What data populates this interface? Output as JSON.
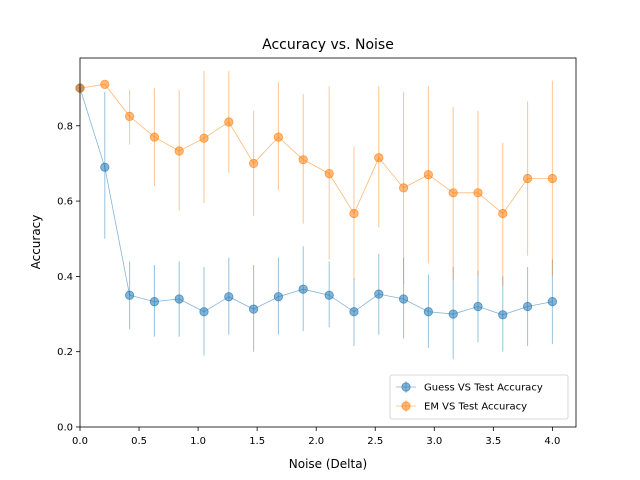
{
  "chart_data": {
    "type": "line",
    "title": "Accuracy vs. Noise",
    "xlabel": "Noise (Delta)",
    "ylabel": "Accuracy",
    "xlim": [
      0,
      4.2
    ],
    "ylim": [
      0,
      0.98
    ],
    "x_ticks": [
      0.0,
      0.5,
      1.0,
      1.5,
      2.0,
      2.5,
      3.0,
      3.5,
      4.0
    ],
    "x_tick_labels": [
      "0.0",
      "0.5",
      "1.0",
      "1.5",
      "2.0",
      "2.5",
      "3.0",
      "3.5",
      "4.0"
    ],
    "y_ticks": [
      0.0,
      0.2,
      0.4,
      0.6,
      0.8
    ],
    "y_tick_labels": [
      "0.0",
      "0.2",
      "0.4",
      "0.6",
      "0.8"
    ],
    "grid": false,
    "legend": "lower-right",
    "x": [
      0.0,
      0.21,
      0.42,
      0.63,
      0.84,
      1.05,
      1.26,
      1.47,
      1.68,
      1.89,
      2.11,
      2.32,
      2.53,
      2.74,
      2.95,
      3.16,
      3.37,
      3.58,
      3.79,
      4.0
    ],
    "series": [
      {
        "name": "Guess VS Test Accuracy",
        "color": "#1f77b4",
        "values": [
          0.9,
          0.69,
          0.35,
          0.333,
          0.34,
          0.306,
          0.346,
          0.313,
          0.346,
          0.366,
          0.35,
          0.306,
          0.353,
          0.34,
          0.306,
          0.3,
          0.32,
          0.298,
          0.32,
          0.333
        ],
        "err_low": [
          0.9,
          0.5,
          0.26,
          0.24,
          0.24,
          0.19,
          0.245,
          0.2,
          0.245,
          0.255,
          0.265,
          0.215,
          0.245,
          0.235,
          0.21,
          0.18,
          0.225,
          0.2,
          0.215,
          0.22
        ],
        "err_high": [
          0.9,
          0.89,
          0.44,
          0.43,
          0.44,
          0.425,
          0.45,
          0.43,
          0.45,
          0.48,
          0.44,
          0.395,
          0.46,
          0.45,
          0.405,
          0.425,
          0.415,
          0.4,
          0.425,
          0.445
        ]
      },
      {
        "name": "EM VS Test Accuracy",
        "color": "#ff7f0e",
        "values": [
          0.9,
          0.91,
          0.825,
          0.77,
          0.733,
          0.767,
          0.81,
          0.7,
          0.77,
          0.71,
          0.673,
          0.567,
          0.715,
          0.635,
          0.67,
          0.622,
          0.622,
          0.567,
          0.66,
          0.66
        ],
        "err_low": [
          0.9,
          0.91,
          0.75,
          0.64,
          0.575,
          0.595,
          0.675,
          0.56,
          0.63,
          0.54,
          0.445,
          0.39,
          0.53,
          0.38,
          0.435,
          0.39,
          0.4,
          0.375,
          0.455,
          0.4
        ],
        "err_high": [
          0.9,
          0.91,
          0.895,
          0.9,
          0.895,
          0.945,
          0.945,
          0.84,
          0.915,
          0.885,
          0.905,
          0.745,
          0.905,
          0.89,
          0.905,
          0.85,
          0.84,
          0.755,
          0.865,
          0.92
        ]
      }
    ]
  }
}
